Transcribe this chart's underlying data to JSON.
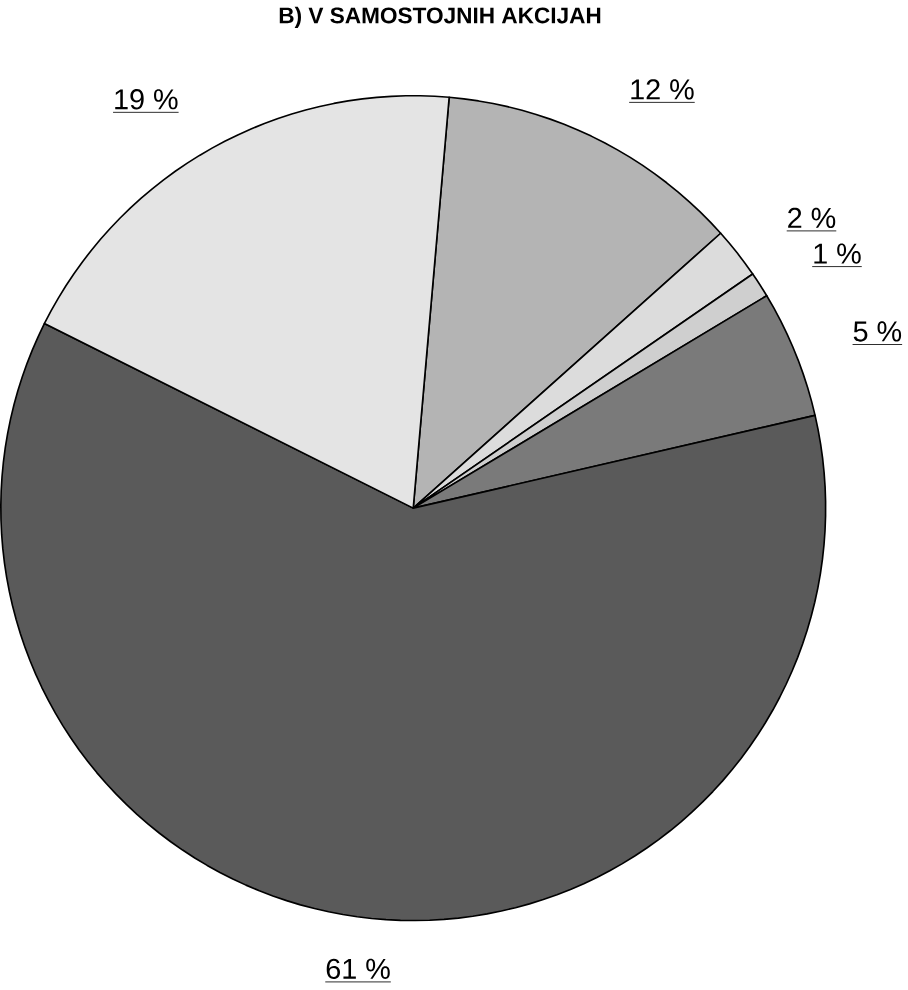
{
  "chart_data": {
    "type": "pie",
    "title": "B) V SAMOSTOJNIH AKCIJAH",
    "categories": [
      null,
      null,
      null,
      null,
      null,
      null
    ],
    "values": [
      12,
      2,
      1,
      5,
      61,
      19
    ],
    "value_labels": [
      "12 %",
      "2 %",
      "1 %",
      "5 %",
      "61 %",
      "19 %"
    ],
    "colors": [
      "#b4b4b4",
      "#dcdcdc",
      "#cfcfcf",
      "#7a7a7a",
      "#5a5a5a",
      "#e4e4e4"
    ]
  }
}
